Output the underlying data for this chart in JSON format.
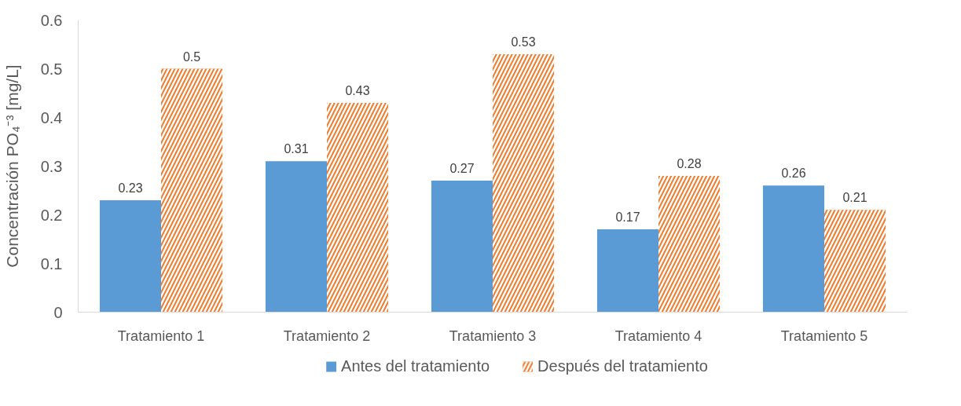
{
  "chart_data": {
    "type": "bar",
    "ylabel": "Concentración PO₄⁻³ [mg/L]",
    "categories": [
      "Tratamiento 1",
      "Tratamiento 2",
      "Tratamiento 3",
      "Tratamiento 4",
      "Tratamiento 5"
    ],
    "series": [
      {
        "name": "Antes del tratamiento",
        "color": "#5b9bd5",
        "values": [
          0.23,
          0.31,
          0.27,
          0.17,
          0.26
        ]
      },
      {
        "name": "Después del tratamiento",
        "color": "#ed7d31",
        "values": [
          0.5,
          0.43,
          0.53,
          0.28,
          0.21
        ]
      }
    ],
    "ylim": [
      0,
      0.6
    ],
    "yticks": [
      0,
      0.1,
      0.2,
      0.3,
      0.4,
      0.5,
      0.6
    ],
    "data_labels": true,
    "grid": false,
    "legend": "bottom"
  }
}
